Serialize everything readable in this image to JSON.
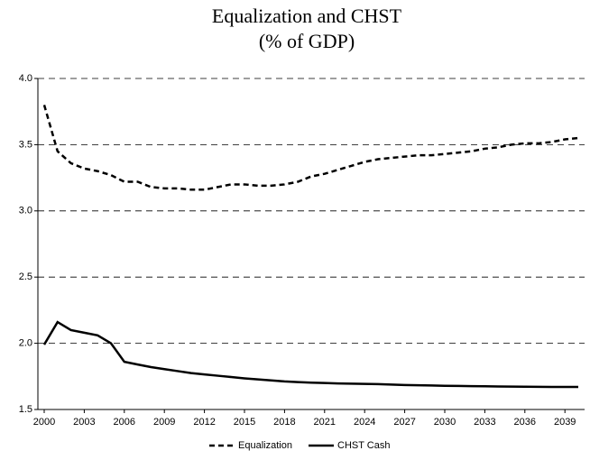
{
  "chart_data": {
    "type": "line",
    "title": "Equalization and CHST",
    "subtitle": "(% of GDP)",
    "x": [
      2000,
      2001,
      2002,
      2003,
      2004,
      2005,
      2006,
      2007,
      2008,
      2009,
      2010,
      2011,
      2012,
      2013,
      2014,
      2015,
      2016,
      2017,
      2018,
      2019,
      2020,
      2021,
      2022,
      2023,
      2024,
      2025,
      2026,
      2027,
      2028,
      2029,
      2030,
      2031,
      2032,
      2033,
      2034,
      2035,
      2036,
      2037,
      2038,
      2039,
      2040
    ],
    "series": [
      {
        "name": "Equalization",
        "color": "#000000",
        "dash": true,
        "values": [
          3.8,
          3.45,
          3.36,
          3.32,
          3.3,
          3.27,
          3.22,
          3.22,
          3.18,
          3.17,
          3.17,
          3.16,
          3.16,
          3.18,
          3.2,
          3.2,
          3.19,
          3.19,
          3.2,
          3.22,
          3.26,
          3.28,
          3.31,
          3.34,
          3.37,
          3.39,
          3.4,
          3.41,
          3.42,
          3.42,
          3.43,
          3.44,
          3.45,
          3.47,
          3.48,
          3.5,
          3.51,
          3.51,
          3.52,
          3.54,
          3.55
        ]
      },
      {
        "name": "CHST Cash",
        "color": "#000000",
        "dash": false,
        "values": [
          1.99,
          2.16,
          2.1,
          2.08,
          2.06,
          2.0,
          1.86,
          1.84,
          1.82,
          1.805,
          1.79,
          1.775,
          1.765,
          1.755,
          1.745,
          1.735,
          1.727,
          1.72,
          1.712,
          1.707,
          1.703,
          1.7,
          1.697,
          1.695,
          1.693,
          1.692,
          1.688,
          1.685,
          1.683,
          1.681,
          1.679,
          1.678,
          1.676,
          1.675,
          1.674,
          1.673,
          1.672,
          1.671,
          1.67,
          1.67,
          1.67
        ]
      }
    ],
    "xlim": [
      2000,
      2040
    ],
    "xticks": [
      2000,
      2003,
      2006,
      2009,
      2012,
      2015,
      2018,
      2021,
      2024,
      2027,
      2030,
      2033,
      2036,
      2039
    ],
    "ylim": [
      1.5,
      4.0
    ],
    "yticks": [
      1.5,
      {
        "value": 2,
        "label": "2.0"
      },
      2.5,
      {
        "value": 3,
        "label": "3.0"
      },
      3.5,
      {
        "value": 4,
        "label": "4.0"
      }
    ],
    "grid": true,
    "legend": "bottom"
  }
}
